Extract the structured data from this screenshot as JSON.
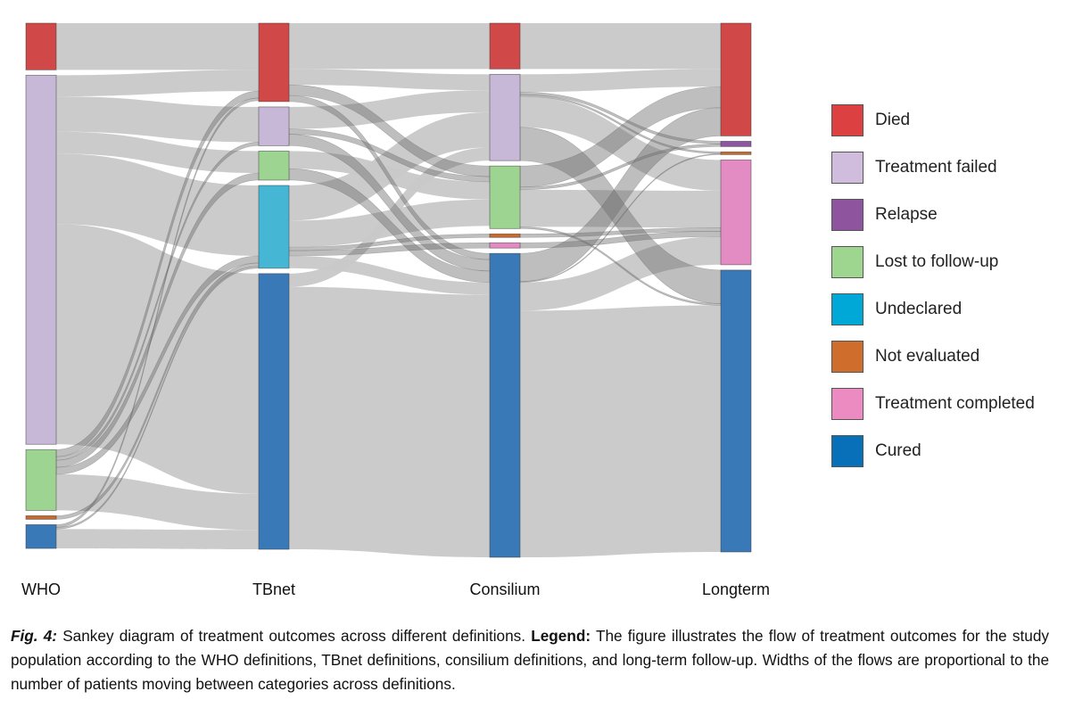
{
  "chart_data": {
    "type": "sankey",
    "stages": [
      "WHO",
      "TBnet",
      "Consilium",
      "Longterm"
    ],
    "categories": [
      {
        "name": "Died",
        "color": "#d04848"
      },
      {
        "name": "Treatment failed",
        "color": "#c8b8d8"
      },
      {
        "name": "Relapse",
        "color": "#8e55a0"
      },
      {
        "name": "Lost to follow-up",
        "color": "#9ed492"
      },
      {
        "name": "Undeclared",
        "color": "#45b6d4"
      },
      {
        "name": "Not evaluated",
        "color": "#c8692e"
      },
      {
        "name": "Treatment completed",
        "color": "#e38cc4"
      },
      {
        "name": "Cured",
        "color": "#3a79b8"
      }
    ],
    "legend": {
      "placement": "right",
      "entries": [
        {
          "label": "Died",
          "color": "#dd4040"
        },
        {
          "label": "Treatment failed",
          "color": "#d0bcdc"
        },
        {
          "label": "Relapse",
          "color": "#8e559e"
        },
        {
          "label": "Lost to follow-up",
          "color": "#9ed690"
        },
        {
          "label": "Undeclared",
          "color": "#00a8d8"
        },
        {
          "label": "Not evaluated",
          "color": "#cf6e2c"
        },
        {
          "label": "Treatment completed",
          "color": "#ec8ac2"
        },
        {
          "label": "Cured",
          "color": "#0870b8"
        }
      ]
    },
    "flows": [
      {
        "from": "WHO|Died",
        "to": "TBnet|Died",
        "value": 53,
        "highlight": false
      },
      {
        "from": "WHO|Treatment failed",
        "to": "TBnet|Died",
        "value": 24,
        "highlight": false
      },
      {
        "from": "WHO|Treatment failed",
        "to": "TBnet|Treatment failed",
        "value": 40,
        "highlight": false
      },
      {
        "from": "WHO|Treatment failed",
        "to": "TBnet|Lost to follow-up",
        "value": 25,
        "highlight": false
      },
      {
        "from": "WHO|Treatment failed",
        "to": "TBnet|Undeclared",
        "value": 80,
        "highlight": false
      },
      {
        "from": "WHO|Treatment failed",
        "to": "TBnet|Cured",
        "value": 250,
        "highlight": false
      },
      {
        "from": "WHO|Lost to follow-up",
        "to": "TBnet|Died",
        "value": 8,
        "highlight": true
      },
      {
        "from": "WHO|Lost to follow-up",
        "to": "TBnet|Treatment failed",
        "value": 4,
        "highlight": true
      },
      {
        "from": "WHO|Lost to follow-up",
        "to": "TBnet|Lost to follow-up",
        "value": 8,
        "highlight": true
      },
      {
        "from": "WHO|Lost to follow-up",
        "to": "TBnet|Undeclared",
        "value": 8,
        "highlight": true
      },
      {
        "from": "WHO|Lost to follow-up",
        "to": "TBnet|Cured",
        "value": 41,
        "highlight": false
      },
      {
        "from": "WHO|Not evaluated",
        "to": "TBnet|Undeclared",
        "value": 4,
        "highlight": true
      },
      {
        "from": "WHO|Cured",
        "to": "TBnet|Died",
        "value": 3,
        "highlight": true
      },
      {
        "from": "WHO|Cured",
        "to": "TBnet|Undeclared",
        "value": 2,
        "highlight": true
      },
      {
        "from": "WHO|Cured",
        "to": "TBnet|Cured",
        "value": 22,
        "highlight": false
      },
      {
        "from": "TBnet|Died",
        "to": "Consilium|Died",
        "value": 52,
        "highlight": false
      },
      {
        "from": "TBnet|Died",
        "to": "Consilium|Treatment failed",
        "value": 18,
        "highlight": false
      },
      {
        "from": "TBnet|Died",
        "to": "Consilium|Lost to follow-up",
        "value": 12,
        "highlight": true
      },
      {
        "from": "TBnet|Died",
        "to": "Consilium|Cured",
        "value": 7,
        "highlight": true
      },
      {
        "from": "TBnet|Treatment failed",
        "to": "Consilium|Treatment failed",
        "value": 25,
        "highlight": false
      },
      {
        "from": "TBnet|Treatment failed",
        "to": "Consilium|Lost to follow-up",
        "value": 6,
        "highlight": true
      },
      {
        "from": "TBnet|Treatment failed",
        "to": "Consilium|Cured",
        "value": 13,
        "highlight": true
      },
      {
        "from": "TBnet|Lost to follow-up",
        "to": "Consilium|Lost to follow-up",
        "value": 20,
        "highlight": false
      },
      {
        "from": "TBnet|Lost to follow-up",
        "to": "Consilium|Cured",
        "value": 13,
        "highlight": true
      },
      {
        "from": "TBnet|Undeclared",
        "to": "Consilium|Treatment failed",
        "value": 40,
        "highlight": false
      },
      {
        "from": "TBnet|Undeclared",
        "to": "Consilium|Lost to follow-up",
        "value": 30,
        "highlight": false
      },
      {
        "from": "TBnet|Undeclared",
        "to": "Consilium|Not evaluated",
        "value": 4,
        "highlight": true
      },
      {
        "from": "TBnet|Undeclared",
        "to": "Consilium|Treatment completed",
        "value": 6,
        "highlight": true
      },
      {
        "from": "TBnet|Undeclared",
        "to": "Consilium|Cured",
        "value": 14,
        "highlight": false
      },
      {
        "from": "TBnet|Cured",
        "to": "Consilium|Treatment failed",
        "value": 15,
        "highlight": false
      },
      {
        "from": "TBnet|Cured",
        "to": "Consilium|Cured",
        "value": 298,
        "highlight": false
      },
      {
        "from": "Consilium|Died",
        "to": "Longterm|Died",
        "value": 52,
        "highlight": false
      },
      {
        "from": "Consilium|Treatment failed",
        "to": "Longterm|Died",
        "value": 20,
        "highlight": false
      },
      {
        "from": "Consilium|Treatment failed",
        "to": "Longterm|Relapse",
        "value": 3,
        "highlight": true
      },
      {
        "from": "Consilium|Treatment failed",
        "to": "Longterm|Not evaluated",
        "value": 2,
        "highlight": true
      },
      {
        "from": "Consilium|Treatment failed",
        "to": "Longterm|Treatment completed",
        "value": 35,
        "highlight": false
      },
      {
        "from": "Consilium|Treatment failed",
        "to": "Longterm|Cured",
        "value": 38,
        "highlight": true
      },
      {
        "from": "Consilium|Lost to follow-up",
        "to": "Longterm|Died",
        "value": 24,
        "highlight": true
      },
      {
        "from": "Consilium|Lost to follow-up",
        "to": "Longterm|Relapse",
        "value": 3,
        "highlight": true
      },
      {
        "from": "Consilium|Lost to follow-up",
        "to": "Longterm|Treatment completed",
        "value": 42,
        "highlight": false
      },
      {
        "from": "Consilium|Lost to follow-up",
        "to": "Longterm|Cured",
        "value": 2,
        "highlight": true
      },
      {
        "from": "Consilium|Not evaluated",
        "to": "Longterm|Treatment completed",
        "value": 4,
        "highlight": true
      },
      {
        "from": "Consilium|Treatment completed",
        "to": "Longterm|Treatment completed",
        "value": 6,
        "highlight": true
      },
      {
        "from": "Consilium|Cured",
        "to": "Longterm|Died",
        "value": 32,
        "highlight": true
      },
      {
        "from": "Consilium|Cured",
        "to": "Longterm|Not evaluated",
        "value": 1,
        "highlight": true
      },
      {
        "from": "Consilium|Cured",
        "to": "Longterm|Treatment completed",
        "value": 32,
        "highlight": false
      },
      {
        "from": "Consilium|Cured",
        "to": "Longterm|Cured",
        "value": 280,
        "highlight": false
      }
    ]
  },
  "caption": {
    "fig_label": "Fig. 4:",
    "text_1": " Sankey diagram of treatment outcomes across different definitions. ",
    "legend_label": "Legend:",
    "text_2": " The figure illustrates the flow of treatment outcomes for the study population according to the WHO definitions, TBnet definitions, consilium definitions, and long-term follow-up. Widths of the flows are proportional to the number of patients moving between categories across definitions."
  }
}
